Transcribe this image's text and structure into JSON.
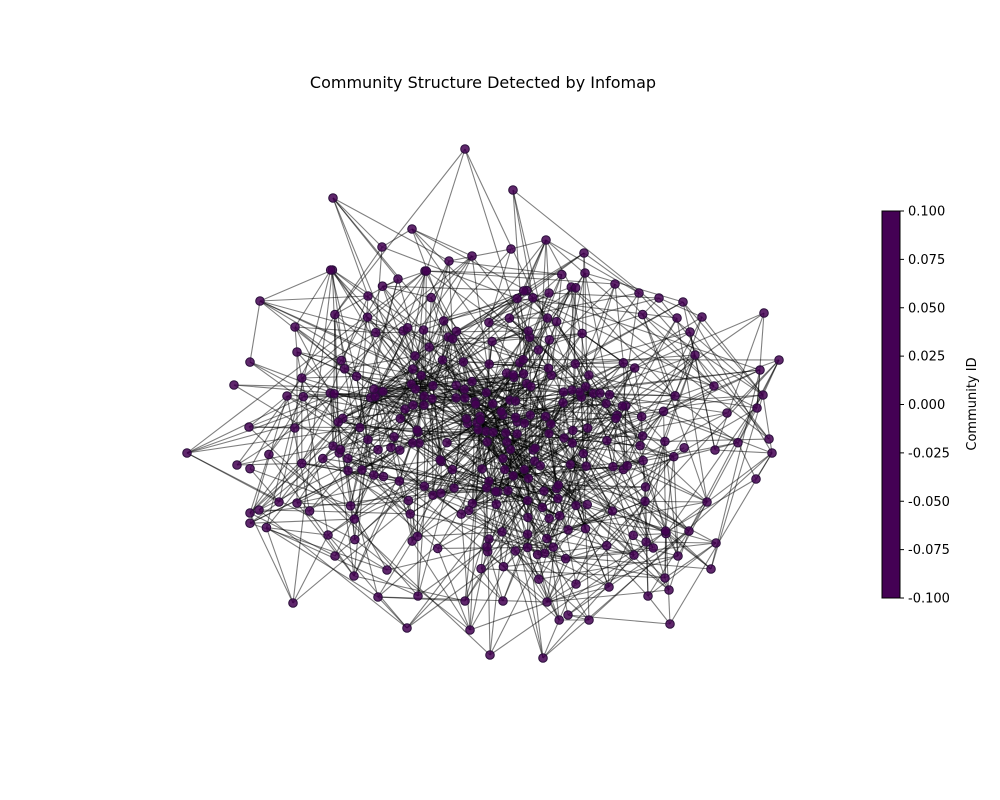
{
  "title": "Community Structure Detected by Infomap",
  "colorbar": {
    "label": "Community ID",
    "range": [
      -0.1,
      0.1
    ],
    "ticks": [
      "0.100",
      "0.075",
      "0.050",
      "0.025",
      "0.000",
      "-0.025",
      "-0.050",
      "-0.075",
      "-0.100"
    ],
    "color": "#440154"
  },
  "node_color": "#440154",
  "edge_color": "#000000"
}
